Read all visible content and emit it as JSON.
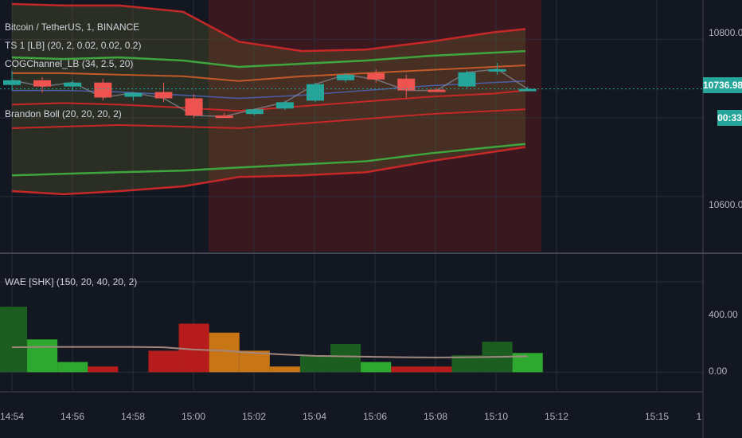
{
  "colors": {
    "background": "#131722",
    "up": "#26a69a",
    "down": "#ef5350",
    "session_shade": "#3a1820",
    "channel_green": "#2e7d32",
    "channel_red": "#c62828",
    "wae_dark_green": "#1b5e20",
    "wae_green": "#2ea82e",
    "wae_red": "#b71c1c",
    "wae_orange": "#c87515",
    "wae_line": "#a1887f"
  },
  "legend": {
    "symbol": "Bitcoin / TetherUS, 1, BINANCE",
    "ts1": "TS 1 [LB] (20, 2, 0.02, 0.02, 0.2)",
    "cog": "COGChannel_LB (34, 2.5, 20)",
    "boll": "Brandon Boll (20, 20, 20, 2)",
    "wae": "WAE [SHK] (150, 20, 40, 20, 2)"
  },
  "price_axis": {
    "labels": [
      "10800.00",
      "10600.00"
    ],
    "last_price": "10736.98",
    "countdown": "00:33",
    "wae_labels": [
      "400.00",
      "0.00"
    ]
  },
  "time_axis": {
    "labels": [
      "14:54",
      "14:56",
      "14:58",
      "15:00",
      "15:02",
      "15:04",
      "15:06",
      "15:08",
      "15:10",
      "15:12",
      "15:15",
      "1"
    ]
  },
  "chart_data": [
    {
      "type": "candlestick",
      "title": "Bitcoin / TetherUS, 1, BINANCE",
      "x": [
        "14:54",
        "14:55",
        "14:56",
        "14:57",
        "14:58",
        "14:59",
        "15:00",
        "15:01",
        "15:02",
        "15:03",
        "15:04",
        "15:05",
        "15:06",
        "15:07",
        "15:08",
        "15:09",
        "15:10",
        "15:11"
      ],
      "ohlc": [
        [
          10742,
          10760,
          10735,
          10748
        ],
        [
          10748,
          10752,
          10732,
          10740
        ],
        [
          10740,
          10748,
          10735,
          10745
        ],
        [
          10745,
          10750,
          10722,
          10726
        ],
        [
          10727,
          10733,
          10722,
          10732
        ],
        [
          10733,
          10745,
          10720,
          10725
        ],
        [
          10725,
          10730,
          10700,
          10703
        ],
        [
          10703,
          10706,
          10700,
          10702
        ],
        [
          10705,
          10712,
          10703,
          10711
        ],
        [
          10712,
          10722,
          10710,
          10720
        ],
        [
          10722,
          10745,
          10720,
          10743
        ],
        [
          10748,
          10757,
          10745,
          10755
        ],
        [
          10757,
          10762,
          10745,
          10749
        ],
        [
          10750,
          10755,
          10725,
          10735
        ],
        [
          10736,
          10738,
          10733,
          10735
        ],
        [
          10740,
          10760,
          10738,
          10758
        ],
        [
          10760,
          10770,
          10755,
          10762
        ],
        [
          10737,
          10740,
          10735,
          10737
        ]
      ],
      "ylim": [
        10530,
        10850
      ],
      "yticks": [
        10600,
        10800
      ],
      "last_price": 10736.98
    },
    {
      "type": "bar",
      "title": "WAE [SHK] (150, 20, 40, 20, 2)",
      "x": [
        "14:54",
        "14:55",
        "14:56",
        "14:57",
        "14:58",
        "14:59",
        "15:00",
        "15:01",
        "15:02",
        "15:03",
        "15:04",
        "15:05",
        "15:06",
        "15:07",
        "15:08",
        "15:09",
        "15:10",
        "15:11"
      ],
      "values": [
        290,
        145,
        45,
        25,
        0,
        95,
        215,
        175,
        95,
        25,
        75,
        125,
        45,
        25,
        25,
        75,
        135,
        85
      ],
      "bar_colors": [
        "dark_green",
        "green",
        "green",
        "red",
        "none",
        "red",
        "red",
        "orange",
        "orange",
        "orange",
        "dark_green",
        "dark_green",
        "green",
        "red",
        "red",
        "dark_green",
        "dark_green",
        "green"
      ],
      "line_values": [
        110,
        112,
        112,
        112,
        112,
        110,
        100,
        95,
        85,
        78,
        72,
        70,
        68,
        66,
        65,
        66,
        68,
        70
      ],
      "ylim": [
        -80,
        520
      ],
      "yticks": [
        0,
        400
      ]
    }
  ]
}
